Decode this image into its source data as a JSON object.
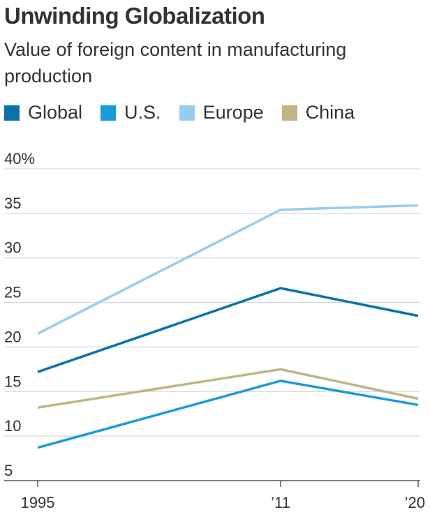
{
  "title": "Unwinding Globalization",
  "subtitle": "Value of foreign content in manufacturing production",
  "chart_data": {
    "type": "line",
    "title": "Unwinding Globalization",
    "subtitle": "Value of foreign content in manufacturing production",
    "x": [
      1995,
      2011,
      2020
    ],
    "x_tick_labels": [
      "1995",
      "’11",
      "’20"
    ],
    "y_ticks": [
      5,
      10,
      15,
      20,
      25,
      30,
      35,
      40
    ],
    "y_tick_labels": [
      "5",
      "10",
      "15",
      "20",
      "25",
      "30",
      "35",
      "40%"
    ],
    "ylim": [
      5,
      40
    ],
    "grid": true,
    "legend_position": "top",
    "series": [
      {
        "name": "Global",
        "color": "#0a72a8",
        "values": [
          17.2,
          26.6,
          23.5
        ]
      },
      {
        "name": "U.S.",
        "color": "#1a9bdb",
        "values": [
          8.7,
          16.2,
          13.5
        ]
      },
      {
        "name": "Europe",
        "color": "#97cdee",
        "values": [
          21.5,
          35.4,
          35.9
        ]
      },
      {
        "name": "China",
        "color": "#beb685",
        "values": [
          13.2,
          17.5,
          14.2
        ]
      }
    ]
  }
}
